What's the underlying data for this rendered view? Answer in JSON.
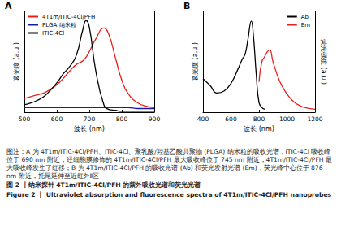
{
  "chart_data": [
    {
      "panel": "A",
      "type": "line",
      "x_label": "波长 (nm)",
      "y_label": "吸光度 (a.u.)",
      "x": [
        500,
        520,
        540,
        560,
        580,
        600,
        620,
        640,
        660,
        680,
        690,
        700,
        720,
        745,
        760,
        780,
        800,
        820,
        850,
        880,
        900
      ],
      "series": [
        {
          "name": "4T1m/ITIC-4Cl/PFH",
          "color": "#e8201c",
          "values": [
            0.15,
            0.17,
            0.19,
            0.21,
            0.25,
            0.3,
            0.37,
            0.45,
            0.52,
            0.56,
            0.6,
            0.66,
            0.8,
            0.92,
            0.85,
            0.6,
            0.35,
            0.2,
            0.1,
            0.06,
            0.05
          ]
        },
        {
          "name": "PLGA 纳米粒",
          "color": "#1a1aa8",
          "values": [
            0.05,
            0.05,
            0.05,
            0.05,
            0.05,
            0.05,
            0.05,
            0.05,
            0.05,
            0.05,
            0.05,
            0.05,
            0.05,
            0.05,
            0.05,
            0.05,
            0.05,
            0.05,
            0.04,
            0.04,
            0.04
          ]
        },
        {
          "name": "ITIC-4Cl",
          "color": "#000000",
          "values": [
            0.08,
            0.1,
            0.13,
            0.17,
            0.24,
            0.32,
            0.42,
            0.5,
            0.62,
            0.9,
            1.0,
            0.93,
            0.45,
            0.08,
            0.03,
            0.02,
            0.01,
            0.01,
            0.01,
            0.01,
            0.01
          ]
        }
      ],
      "xlim": [
        500,
        900
      ],
      "xticks": [
        500,
        600,
        700,
        800,
        900
      ],
      "ylim": [
        0,
        1.1
      ],
      "tick_labels": "x",
      "legend": "upper left"
    },
    {
      "panel": "B",
      "type": "line",
      "x_label": "波长 (nm)",
      "y_label": "吸光度 (a.u.)",
      "y2_label": "荧光强度 (a.u.)",
      "x": [
        400,
        450,
        500,
        550,
        600,
        650,
        680,
        700,
        720,
        745,
        760,
        780,
        800,
        820,
        840,
        860,
        876,
        900,
        950,
        1000,
        1050,
        1100,
        1150,
        1200
      ],
      "series": [
        {
          "name": "Ab",
          "color": "#000000",
          "values": [
            0.35,
            0.28,
            0.2,
            0.22,
            0.3,
            0.45,
            0.55,
            0.6,
            0.75,
            0.95,
            0.8,
            0.4,
            0.1,
            0.05,
            0.03,
            null,
            null,
            null,
            null,
            null,
            null,
            null,
            null,
            null
          ]
        },
        {
          "name": "Em",
          "color": "#e8201c",
          "axis": "y2",
          "values": [
            null,
            null,
            null,
            null,
            null,
            null,
            null,
            null,
            null,
            null,
            null,
            null,
            0.3,
            0.5,
            0.55,
            0.6,
            0.62,
            0.5,
            0.3,
            0.18,
            0.1,
            0.06,
            0.04,
            0.03
          ]
        }
      ],
      "xlim": [
        400,
        1200
      ],
      "xticks": [
        400,
        600,
        800,
        1000,
        1200
      ],
      "ylim": [
        0,
        1.05
      ],
      "y2lim": [
        0,
        1
      ],
      "tick_labels": "x",
      "legend": "upper right"
    }
  ],
  "caption": {
    "note": "图注：A 为 4T1m/ITIC-4Cl/PFH、ITIC-4Cl、聚乳酸/羟基乙酸共聚物 (PLGA) 纳米粒的吸收光谱，ITIC-4Cl 吸收峰位于 690 nm 附近，经细胞膜修饰的 4T1m/ITIC-4Cl/PFH 最大吸收峰位于 745 nm 附近，4T1m/ITIC-4Cl/PFH 最大吸收峰发生了红移；B 为 4T1m/ITIC-4Cl/PFH 的吸收光谱 (Ab) 和荧光发射光谱 (Em)，荧光峰中心位于 876 nm 附近，托尾延伸至近红外Ⅱ区",
    "title_zh": "图 2 丨纳米探针 4T1m/ITIC-4Cl/PFH 的紫外吸收光谱和荧光光谱",
    "title_en": "Figure 2 丨 Ultraviolet absorption and fluorescence spectra of 4T1m/ITIC-4Cl/PFH nanoprobes"
  }
}
